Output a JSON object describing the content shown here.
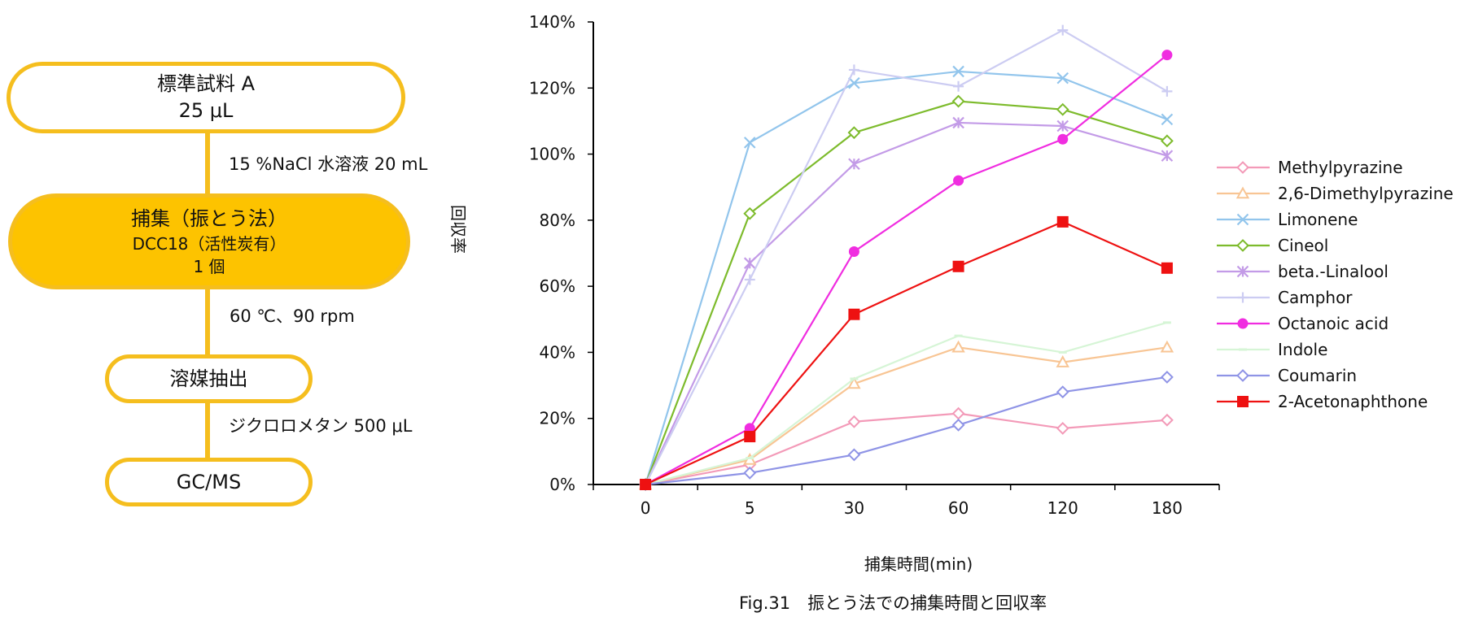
{
  "flowchart": {
    "steps": [
      {
        "line1": "標準試料 A",
        "line2": "25 μL"
      },
      {
        "line1": "捕集（振とう法）",
        "line2": "DCC18（活性炭有）",
        "line3": "1 個"
      },
      {
        "line1": "溶媒抽出"
      },
      {
        "line1": "GC/MS"
      }
    ],
    "notes": [
      "15 %NaCl 水溶液 20 mL",
      "60 ℃、90 rpm",
      "ジクロロメタン 500 μL"
    ],
    "accent_color": "#f5be1e",
    "fill_color": "#fdc300"
  },
  "chart_data": {
    "type": "line",
    "xlabel": "捕集時間(min)",
    "ylabel": "回収率",
    "categories": [
      "0",
      "5",
      "30",
      "60",
      "120",
      "180"
    ],
    "ylim": [
      0,
      140
    ],
    "yticks": [
      "0%",
      "20%",
      "40%",
      "60%",
      "80%",
      "100%",
      "120%",
      "140%"
    ],
    "grid": false,
    "legend_position": "right",
    "series": [
      {
        "name": "Methylpyrazine",
        "color": "#f39ab8",
        "marker": "diamond-open",
        "values": [
          0,
          6,
          19,
          21.5,
          17,
          19.5
        ]
      },
      {
        "name": "2,6-Dimethylpyrazine",
        "color": "#f8c594",
        "marker": "triangle-open",
        "values": [
          0,
          7.5,
          30.5,
          41.5,
          37,
          41.5
        ]
      },
      {
        "name": "Limonene",
        "color": "#92c5ec",
        "marker": "x",
        "values": [
          0,
          103.5,
          121.5,
          125,
          123,
          110.5
        ]
      },
      {
        "name": "Cineol",
        "color": "#7dbb2c",
        "marker": "diamond-open",
        "values": [
          0,
          82,
          106.5,
          116,
          113.5,
          104
        ]
      },
      {
        "name": "beta.-Linalool",
        "color": "#c39be7",
        "marker": "asterisk",
        "values": [
          0,
          67,
          97,
          109.5,
          108.5,
          99.5
        ]
      },
      {
        "name": "Camphor",
        "color": "#ccccf2",
        "marker": "plus",
        "values": [
          0,
          62,
          125.5,
          120.5,
          137.5,
          119
        ]
      },
      {
        "name": "Octanoic acid",
        "color": "#f02de0",
        "marker": "circle",
        "values": [
          0,
          17,
          70.5,
          92,
          104.5,
          130
        ]
      },
      {
        "name": "Indole",
        "color": "#d6f5d6",
        "marker": "dash",
        "values": [
          0,
          8,
          32,
          45,
          40,
          49
        ]
      },
      {
        "name": "Coumarin",
        "color": "#8f94e6",
        "marker": "diamond-open",
        "values": [
          0,
          3.5,
          9,
          18,
          28,
          32.5
        ]
      },
      {
        "name": "2-Acetonaphthone",
        "color": "#ee1111",
        "marker": "square",
        "values": [
          0,
          14.5,
          51.5,
          66,
          79.5,
          65.5
        ]
      }
    ]
  },
  "caption": "Fig.31　振とう法での捕集時間と回収率"
}
